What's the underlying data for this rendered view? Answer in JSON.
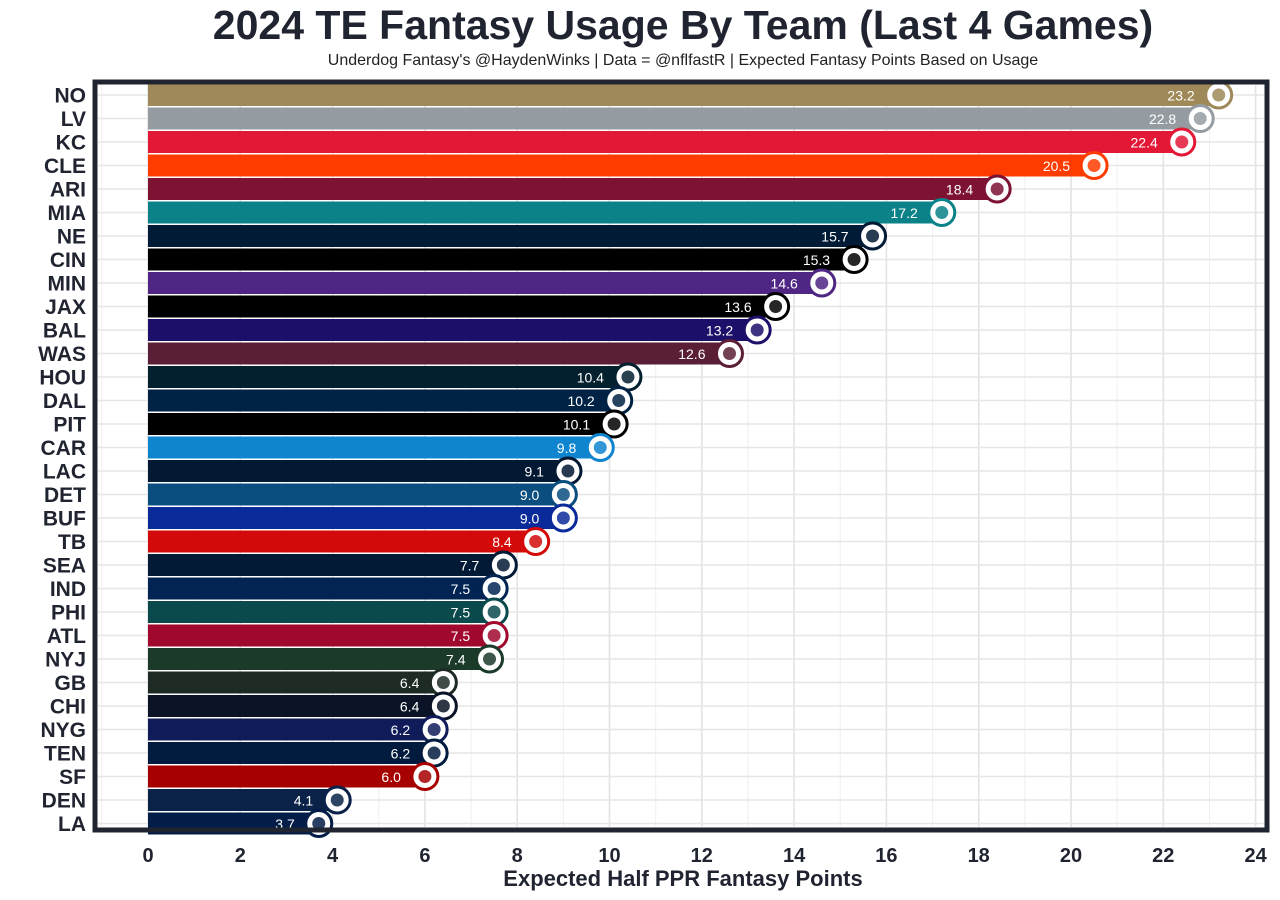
{
  "chart_data": {
    "type": "bar",
    "orientation": "horizontal",
    "title": "2024 TE Fantasy Usage By Team (Last 4 Games)",
    "subtitle": "Underdog Fantasy's @HaydenWinks | Data = @nflfastR | Expected Fantasy Points Based on Usage",
    "xlabel": "Expected Half PPR Fantasy Points",
    "ylabel": "",
    "xlim": [
      0,
      24
    ],
    "x_ticks": [
      "0",
      "2",
      "4",
      "6",
      "8",
      "10",
      "12",
      "14",
      "16",
      "18",
      "20",
      "22",
      "24"
    ],
    "grid": true,
    "legend": "none",
    "bars": [
      {
        "team": "NO",
        "value": 23.2,
        "label": "23.2",
        "color": "#9F8958"
      },
      {
        "team": "LV",
        "value": 22.8,
        "label": "22.8",
        "color": "#959CA1"
      },
      {
        "team": "KC",
        "value": 22.4,
        "label": "22.4",
        "color": "#E31837"
      },
      {
        "team": "CLE",
        "value": 20.5,
        "label": "20.5",
        "color": "#FF3C00"
      },
      {
        "team": "ARI",
        "value": 18.4,
        "label": "18.4",
        "color": "#7D1233"
      },
      {
        "team": "MIA",
        "value": 17.2,
        "label": "17.2",
        "color": "#0B8188"
      },
      {
        "team": "NE",
        "value": 15.7,
        "label": "15.7",
        "color": "#011A35"
      },
      {
        "team": "CIN",
        "value": 15.3,
        "label": "15.3",
        "color": "#000000"
      },
      {
        "team": "MIN",
        "value": 14.6,
        "label": "14.6",
        "color": "#4F2683"
      },
      {
        "team": "JAX",
        "value": 13.6,
        "label": "13.6",
        "color": "#000000"
      },
      {
        "team": "BAL",
        "value": 13.2,
        "label": "13.2",
        "color": "#1C0F6A"
      },
      {
        "team": "WAS",
        "value": 12.6,
        "label": "12.6",
        "color": "#5A1F36"
      },
      {
        "team": "HOU",
        "value": 10.4,
        "label": "10.4",
        "color": "#03202F"
      },
      {
        "team": "DAL",
        "value": 10.2,
        "label": "10.2",
        "color": "#002244"
      },
      {
        "team": "PIT",
        "value": 10.1,
        "label": "10.1",
        "color": "#000000"
      },
      {
        "team": "CAR",
        "value": 9.8,
        "label": "9.8",
        "color": "#0F85D0"
      },
      {
        "team": "LAC",
        "value": 9.1,
        "label": "9.1",
        "color": "#021833"
      },
      {
        "team": "DET",
        "value": 9.0,
        "label": "9.0",
        "color": "#0A4D7F"
      },
      {
        "team": "BUF",
        "value": 9.0,
        "label": "9.0",
        "color": "#0B2A9A"
      },
      {
        "team": "TB",
        "value": 8.4,
        "label": "8.4",
        "color": "#D40A0A"
      },
      {
        "team": "SEA",
        "value": 7.7,
        "label": "7.7",
        "color": "#021A35"
      },
      {
        "team": "IND",
        "value": 7.5,
        "label": "7.5",
        "color": "#012453"
      },
      {
        "team": "PHI",
        "value": 7.5,
        "label": "7.5",
        "color": "#0A4A4D"
      },
      {
        "team": "ATL",
        "value": 7.5,
        "label": "7.5",
        "color": "#A1082E"
      },
      {
        "team": "NYJ",
        "value": 7.4,
        "label": "7.4",
        "color": "#1B3A2A"
      },
      {
        "team": "GB",
        "value": 6.4,
        "label": "6.4",
        "color": "#1D2B24"
      },
      {
        "team": "CHI",
        "value": 6.4,
        "label": "6.4",
        "color": "#0B1426"
      },
      {
        "team": "NYG",
        "value": 6.2,
        "label": "6.2",
        "color": "#101C5A"
      },
      {
        "team": "TEN",
        "value": 6.2,
        "label": "6.2",
        "color": "#011B3E"
      },
      {
        "team": "SF",
        "value": 6.0,
        "label": "6.0",
        "color": "#A70000"
      },
      {
        "team": "DEN",
        "value": 4.1,
        "label": "4.1",
        "color": "#0A2248"
      },
      {
        "team": "LA",
        "value": 3.7,
        "label": "3.7",
        "color": "#021D47"
      }
    ]
  }
}
